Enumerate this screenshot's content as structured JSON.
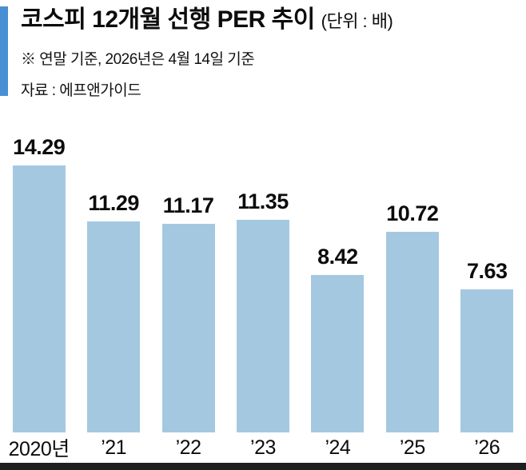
{
  "header": {
    "title": "코스피 12개월 선행 PER 추이",
    "unit_label": "(단위 : 배)",
    "note": "※  연말 기준, 2026년은 4월 14일 기준",
    "source": "자료 : 에프앤가이드",
    "accent_color": "#4a8fd3"
  },
  "chart_data": {
    "type": "bar",
    "title": "코스피 12개월 선행 PER 추이",
    "unit": "배",
    "categories": [
      "2020년",
      "’21",
      "’22",
      "’23",
      "’24",
      "’25",
      "’26"
    ],
    "values": [
      14.29,
      11.29,
      11.17,
      11.35,
      8.42,
      10.72,
      7.63
    ],
    "value_labels_shown": true,
    "ylim": [
      0,
      15
    ],
    "grid": false,
    "legend": false,
    "bar_color": "#a5c8e1",
    "axis_line_color": "#1f1f1f"
  }
}
